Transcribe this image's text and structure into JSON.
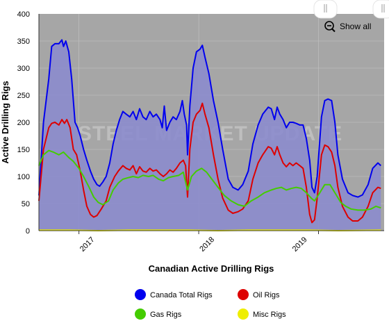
{
  "chart_data": {
    "type": "line",
    "title": "",
    "xlabel": "Canadian Active Drilling Rigs",
    "ylabel": "Active Drilling Rigs",
    "ylim": [
      0,
      400
    ],
    "yticks": [
      0,
      50,
      100,
      150,
      200,
      250,
      300,
      350,
      400
    ],
    "xlim": [
      "2016-09-01",
      "2019-07-20"
    ],
    "xticks": [
      {
        "label": "2017",
        "date": "2017-01-01"
      },
      {
        "label": "2018",
        "date": "2018-01-01"
      },
      {
        "label": "2019",
        "date": "2019-01-01"
      }
    ],
    "grid": true,
    "legend_position": "bottom",
    "watermark": "STEEL MARKET UPDATE",
    "show_all_label": "Show all",
    "series": [
      {
        "name": "Canada Total Rigs",
        "color": "#0000ee",
        "area": true,
        "points": [
          [
            "2016-09-01",
            65
          ],
          [
            "2016-09-15",
            200
          ],
          [
            "2016-10-01",
            280
          ],
          [
            "2016-10-10",
            340
          ],
          [
            "2016-10-20",
            345
          ],
          [
            "2016-11-01",
            345
          ],
          [
            "2016-11-10",
            352
          ],
          [
            "2016-11-15",
            340
          ],
          [
            "2016-11-22",
            350
          ],
          [
            "2016-12-01",
            330
          ],
          [
            "2016-12-10",
            280
          ],
          [
            "2016-12-20",
            200
          ],
          [
            "2016-12-28",
            190
          ],
          [
            "2017-01-05",
            175
          ],
          [
            "2017-01-15",
            150
          ],
          [
            "2017-01-25",
            130
          ],
          [
            "2017-02-05",
            110
          ],
          [
            "2017-02-15",
            95
          ],
          [
            "2017-02-25",
            85
          ],
          [
            "2017-03-05",
            82
          ],
          [
            "2017-03-15",
            90
          ],
          [
            "2017-03-25",
            100
          ],
          [
            "2017-04-05",
            125
          ],
          [
            "2017-04-15",
            160
          ],
          [
            "2017-04-25",
            185
          ],
          [
            "2017-05-05",
            205
          ],
          [
            "2017-05-15",
            220
          ],
          [
            "2017-05-25",
            215
          ],
          [
            "2017-06-05",
            210
          ],
          [
            "2017-06-15",
            220
          ],
          [
            "2017-06-25",
            205
          ],
          [
            "2017-07-05",
            225
          ],
          [
            "2017-07-15",
            210
          ],
          [
            "2017-07-25",
            205
          ],
          [
            "2017-08-05",
            220
          ],
          [
            "2017-08-15",
            210
          ],
          [
            "2017-08-25",
            215
          ],
          [
            "2017-09-05",
            205
          ],
          [
            "2017-09-12",
            190
          ],
          [
            "2017-09-18",
            230
          ],
          [
            "2017-09-25",
            185
          ],
          [
            "2017-10-05",
            200
          ],
          [
            "2017-10-15",
            210
          ],
          [
            "2017-10-25",
            205
          ],
          [
            "2017-11-05",
            220
          ],
          [
            "2017-11-12",
            240
          ],
          [
            "2017-11-18",
            215
          ],
          [
            "2017-11-25",
            195
          ],
          [
            "2017-11-28",
            140
          ],
          [
            "2017-12-05",
            230
          ],
          [
            "2017-12-15",
            300
          ],
          [
            "2017-12-25",
            330
          ],
          [
            "2018-01-05",
            335
          ],
          [
            "2018-01-12",
            342
          ],
          [
            "2018-01-20",
            320
          ],
          [
            "2018-02-01",
            290
          ],
          [
            "2018-02-15",
            240
          ],
          [
            "2018-03-01",
            200
          ],
          [
            "2018-03-15",
            150
          ],
          [
            "2018-04-01",
            95
          ],
          [
            "2018-04-15",
            80
          ],
          [
            "2018-05-01",
            75
          ],
          [
            "2018-05-15",
            85
          ],
          [
            "2018-06-01",
            110
          ],
          [
            "2018-06-15",
            160
          ],
          [
            "2018-07-01",
            195
          ],
          [
            "2018-07-15",
            215
          ],
          [
            "2018-08-01",
            228
          ],
          [
            "2018-08-10",
            225
          ],
          [
            "2018-08-20",
            205
          ],
          [
            "2018-08-28",
            228
          ],
          [
            "2018-09-05",
            215
          ],
          [
            "2018-09-15",
            205
          ],
          [
            "2018-09-25",
            190
          ],
          [
            "2018-10-05",
            200
          ],
          [
            "2018-10-15",
            200
          ],
          [
            "2018-10-25",
            198
          ],
          [
            "2018-11-05",
            195
          ],
          [
            "2018-11-15",
            195
          ],
          [
            "2018-11-25",
            170
          ],
          [
            "2018-12-05",
            130
          ],
          [
            "2018-12-12",
            80
          ],
          [
            "2018-12-20",
            70
          ],
          [
            "2018-12-28",
            100
          ],
          [
            "2019-01-10",
            210
          ],
          [
            "2019-01-20",
            240
          ],
          [
            "2019-01-30",
            243
          ],
          [
            "2019-02-10",
            240
          ],
          [
            "2019-02-20",
            200
          ],
          [
            "2019-03-01",
            140
          ],
          [
            "2019-03-15",
            95
          ],
          [
            "2019-04-01",
            70
          ],
          [
            "2019-04-15",
            65
          ],
          [
            "2019-05-01",
            62
          ],
          [
            "2019-05-15",
            66
          ],
          [
            "2019-06-01",
            85
          ],
          [
            "2019-06-15",
            115
          ],
          [
            "2019-07-01",
            125
          ],
          [
            "2019-07-10",
            120
          ]
        ]
      },
      {
        "name": "Oil Rigs",
        "color": "#dd0000",
        "area": false,
        "points": [
          [
            "2016-09-01",
            55
          ],
          [
            "2016-09-15",
            150
          ],
          [
            "2016-10-01",
            190
          ],
          [
            "2016-10-10",
            198
          ],
          [
            "2016-10-20",
            200
          ],
          [
            "2016-11-01",
            195
          ],
          [
            "2016-11-10",
            205
          ],
          [
            "2016-11-18",
            198
          ],
          [
            "2016-11-25",
            205
          ],
          [
            "2016-12-05",
            190
          ],
          [
            "2016-12-15",
            150
          ],
          [
            "2016-12-25",
            140
          ],
          [
            "2017-01-05",
            110
          ],
          [
            "2017-01-15",
            75
          ],
          [
            "2017-01-25",
            45
          ],
          [
            "2017-02-05",
            30
          ],
          [
            "2017-02-15",
            25
          ],
          [
            "2017-02-25",
            28
          ],
          [
            "2017-03-10",
            40
          ],
          [
            "2017-03-25",
            55
          ],
          [
            "2017-04-05",
            80
          ],
          [
            "2017-04-20",
            100
          ],
          [
            "2017-05-01",
            110
          ],
          [
            "2017-05-15",
            120
          ],
          [
            "2017-05-25",
            115
          ],
          [
            "2017-06-05",
            112
          ],
          [
            "2017-06-15",
            120
          ],
          [
            "2017-06-25",
            105
          ],
          [
            "2017-07-05",
            118
          ],
          [
            "2017-07-15",
            110
          ],
          [
            "2017-07-25",
            108
          ],
          [
            "2017-08-05",
            115
          ],
          [
            "2017-08-15",
            110
          ],
          [
            "2017-08-25",
            112
          ],
          [
            "2017-09-05",
            105
          ],
          [
            "2017-09-15",
            100
          ],
          [
            "2017-09-25",
            105
          ],
          [
            "2017-10-05",
            112
          ],
          [
            "2017-10-15",
            108
          ],
          [
            "2017-10-25",
            115
          ],
          [
            "2017-11-05",
            125
          ],
          [
            "2017-11-15",
            130
          ],
          [
            "2017-11-22",
            120
          ],
          [
            "2017-11-28",
            62
          ],
          [
            "2017-12-05",
            150
          ],
          [
            "2017-12-15",
            200
          ],
          [
            "2017-12-25",
            215
          ],
          [
            "2018-01-05",
            222
          ],
          [
            "2018-01-12",
            235
          ],
          [
            "2018-01-20",
            215
          ],
          [
            "2018-02-01",
            190
          ],
          [
            "2018-02-15",
            140
          ],
          [
            "2018-03-01",
            95
          ],
          [
            "2018-03-15",
            60
          ],
          [
            "2018-04-01",
            38
          ],
          [
            "2018-04-15",
            32
          ],
          [
            "2018-05-01",
            35
          ],
          [
            "2018-05-15",
            40
          ],
          [
            "2018-06-01",
            55
          ],
          [
            "2018-06-15",
            95
          ],
          [
            "2018-07-01",
            125
          ],
          [
            "2018-07-15",
            140
          ],
          [
            "2018-08-01",
            155
          ],
          [
            "2018-08-10",
            152
          ],
          [
            "2018-08-20",
            140
          ],
          [
            "2018-08-28",
            155
          ],
          [
            "2018-09-05",
            140
          ],
          [
            "2018-09-15",
            125
          ],
          [
            "2018-09-25",
            118
          ],
          [
            "2018-10-05",
            125
          ],
          [
            "2018-10-15",
            120
          ],
          [
            "2018-10-25",
            125
          ],
          [
            "2018-11-05",
            120
          ],
          [
            "2018-11-15",
            115
          ],
          [
            "2018-11-25",
            80
          ],
          [
            "2018-12-05",
            30
          ],
          [
            "2018-12-12",
            15
          ],
          [
            "2018-12-20",
            20
          ],
          [
            "2018-12-28",
            60
          ],
          [
            "2019-01-10",
            140
          ],
          [
            "2019-01-20",
            158
          ],
          [
            "2019-01-30",
            155
          ],
          [
            "2019-02-10",
            145
          ],
          [
            "2019-02-20",
            120
          ],
          [
            "2019-03-01",
            80
          ],
          [
            "2019-03-15",
            45
          ],
          [
            "2019-04-01",
            25
          ],
          [
            "2019-04-15",
            18
          ],
          [
            "2019-05-01",
            18
          ],
          [
            "2019-05-15",
            25
          ],
          [
            "2019-06-01",
            45
          ],
          [
            "2019-06-15",
            70
          ],
          [
            "2019-07-01",
            80
          ],
          [
            "2019-07-10",
            78
          ]
        ]
      },
      {
        "name": "Gas Rigs",
        "color": "#44cc00",
        "area": false,
        "points": [
          [
            "2016-09-01",
            120
          ],
          [
            "2016-09-15",
            140
          ],
          [
            "2016-10-01",
            148
          ],
          [
            "2016-10-15",
            145
          ],
          [
            "2016-11-01",
            140
          ],
          [
            "2016-11-15",
            145
          ],
          [
            "2016-12-01",
            135
          ],
          [
            "2016-12-15",
            128
          ],
          [
            "2017-01-01",
            115
          ],
          [
            "2017-01-15",
            100
          ],
          [
            "2017-02-01",
            80
          ],
          [
            "2017-02-15",
            62
          ],
          [
            "2017-03-01",
            52
          ],
          [
            "2017-03-15",
            48
          ],
          [
            "2017-04-01",
            55
          ],
          [
            "2017-04-15",
            75
          ],
          [
            "2017-05-01",
            88
          ],
          [
            "2017-05-15",
            95
          ],
          [
            "2017-06-01",
            98
          ],
          [
            "2017-06-15",
            100
          ],
          [
            "2017-07-01",
            98
          ],
          [
            "2017-07-15",
            102
          ],
          [
            "2017-08-01",
            100
          ],
          [
            "2017-08-15",
            102
          ],
          [
            "2017-09-01",
            95
          ],
          [
            "2017-09-15",
            92
          ],
          [
            "2017-10-01",
            98
          ],
          [
            "2017-10-15",
            100
          ],
          [
            "2017-11-01",
            102
          ],
          [
            "2017-11-15",
            108
          ],
          [
            "2017-11-28",
            75
          ],
          [
            "2017-12-10",
            100
          ],
          [
            "2017-12-25",
            110
          ],
          [
            "2018-01-10",
            115
          ],
          [
            "2018-01-25",
            108
          ],
          [
            "2018-02-10",
            95
          ],
          [
            "2018-03-01",
            80
          ],
          [
            "2018-03-20",
            65
          ],
          [
            "2018-04-10",
            55
          ],
          [
            "2018-05-01",
            48
          ],
          [
            "2018-05-20",
            45
          ],
          [
            "2018-06-10",
            55
          ],
          [
            "2018-07-01",
            62
          ],
          [
            "2018-07-20",
            70
          ],
          [
            "2018-08-10",
            75
          ],
          [
            "2018-08-25",
            78
          ],
          [
            "2018-09-10",
            80
          ],
          [
            "2018-09-25",
            75
          ],
          [
            "2018-10-10",
            78
          ],
          [
            "2018-10-25",
            80
          ],
          [
            "2018-11-10",
            78
          ],
          [
            "2018-11-25",
            70
          ],
          [
            "2018-12-10",
            60
          ],
          [
            "2018-12-20",
            55
          ],
          [
            "2019-01-05",
            70
          ],
          [
            "2019-01-20",
            85
          ],
          [
            "2019-02-05",
            85
          ],
          [
            "2019-02-20",
            70
          ],
          [
            "2019-03-10",
            52
          ],
          [
            "2019-03-25",
            45
          ],
          [
            "2019-04-10",
            40
          ],
          [
            "2019-05-01",
            38
          ],
          [
            "2019-05-20",
            38
          ],
          [
            "2019-06-10",
            40
          ],
          [
            "2019-06-25",
            45
          ],
          [
            "2019-07-10",
            42
          ]
        ]
      },
      {
        "name": "Misc Rigs",
        "color": "#eeee00",
        "area": false,
        "points": [
          [
            "2016-09-01",
            1
          ],
          [
            "2016-12-01",
            1
          ],
          [
            "2017-03-01",
            0
          ],
          [
            "2017-06-01",
            1
          ],
          [
            "2017-09-01",
            1
          ],
          [
            "2017-12-01",
            1
          ],
          [
            "2018-03-01",
            0
          ],
          [
            "2018-06-01",
            1
          ],
          [
            "2018-09-01",
            1
          ],
          [
            "2018-12-01",
            1
          ],
          [
            "2019-03-01",
            0
          ],
          [
            "2019-07-10",
            1
          ]
        ]
      }
    ]
  }
}
